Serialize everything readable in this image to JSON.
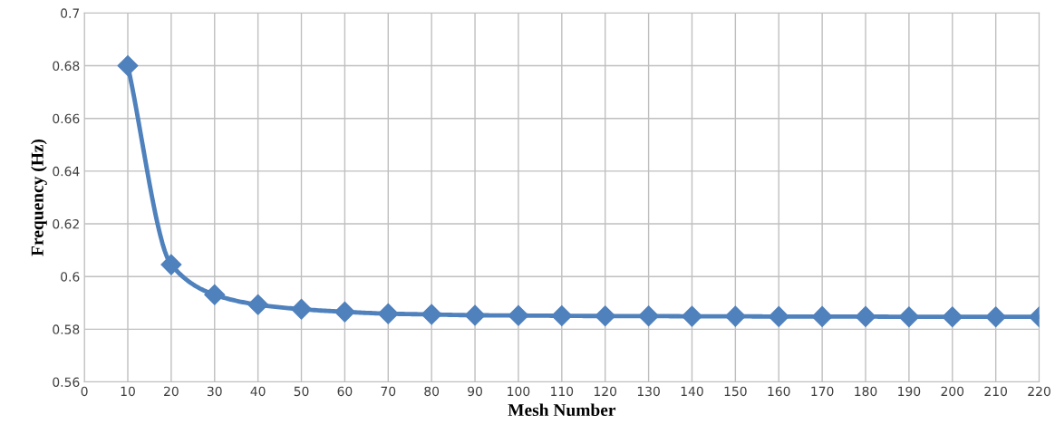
{
  "chart_data": {
    "type": "line",
    "xlabel": "Mesh Number",
    "ylabel": "Frequency (Hz)",
    "x": [
      10,
      20,
      30,
      40,
      50,
      60,
      70,
      80,
      90,
      100,
      110,
      120,
      130,
      140,
      150,
      160,
      170,
      180,
      190,
      200,
      210,
      220
    ],
    "series": [
      {
        "color": "#4f81bd",
        "values": [
          0.68,
          0.6045,
          0.5931,
          0.5893,
          0.5876,
          0.5866,
          0.5859,
          0.5856,
          0.5853,
          0.5852,
          0.5851,
          0.585,
          0.585,
          0.5849,
          0.5849,
          0.5848,
          0.5848,
          0.5848,
          0.5847,
          0.5847,
          0.5847,
          0.5847
        ]
      }
    ],
    "xlim": [
      0,
      220
    ],
    "xticks": [
      0,
      10,
      20,
      30,
      40,
      50,
      60,
      70,
      80,
      90,
      100,
      110,
      120,
      130,
      140,
      150,
      160,
      170,
      180,
      190,
      200,
      210,
      220
    ],
    "ylim": [
      0.56,
      0.7
    ],
    "yticks": [
      {
        "value": 0.56,
        "label": "0.56"
      },
      {
        "value": 0.58,
        "label": "0.58"
      },
      {
        "value": 0.6,
        "label": "0.6"
      },
      {
        "value": 0.62,
        "label": "0.62"
      },
      {
        "value": 0.64,
        "label": "0.64"
      },
      {
        "value": 0.66,
        "label": "0.66"
      },
      {
        "value": 0.68,
        "label": "0.68"
      },
      {
        "value": 0.7,
        "label": "0.7"
      }
    ],
    "grid": true,
    "marker": "diamond",
    "line_style": "solid"
  }
}
